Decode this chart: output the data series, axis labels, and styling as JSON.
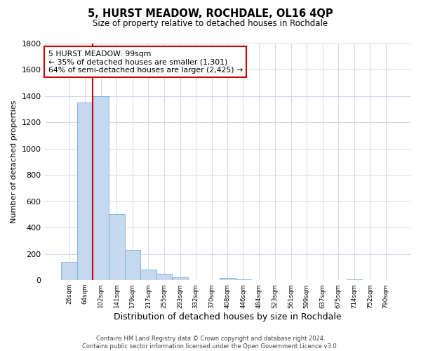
{
  "title": "5, HURST MEADOW, ROCHDALE, OL16 4QP",
  "subtitle": "Size of property relative to detached houses in Rochdale",
  "xlabel": "Distribution of detached houses by size in Rochdale",
  "ylabel": "Number of detached properties",
  "bar_labels": [
    "26sqm",
    "64sqm",
    "102sqm",
    "141sqm",
    "179sqm",
    "217sqm",
    "255sqm",
    "293sqm",
    "332sqm",
    "370sqm",
    "408sqm",
    "446sqm",
    "484sqm",
    "523sqm",
    "561sqm",
    "599sqm",
    "637sqm",
    "675sqm",
    "714sqm",
    "752sqm",
    "790sqm"
  ],
  "bar_values": [
    140,
    1350,
    1400,
    500,
    230,
    80,
    50,
    25,
    0,
    0,
    15,
    5,
    0,
    0,
    0,
    0,
    0,
    0,
    5,
    0,
    0
  ],
  "bar_color": "#c5d8f0",
  "bar_edge_color": "#7bafd4",
  "marker_color": "#cc0000",
  "marker_bar_index": 2,
  "ylim": [
    0,
    1800
  ],
  "yticks": [
    0,
    200,
    400,
    600,
    800,
    1000,
    1200,
    1400,
    1600,
    1800
  ],
  "annotation_title": "5 HURST MEADOW: 99sqm",
  "annotation_line1": "← 35% of detached houses are smaller (1,301)",
  "annotation_line2": "64% of semi-detached houses are larger (2,425) →",
  "annotation_box_color": "#ffffff",
  "annotation_box_edge": "#cc0000",
  "footer_line1": "Contains HM Land Registry data © Crown copyright and database right 2024.",
  "footer_line2": "Contains public sector information licensed under the Open Government Licence v3.0.",
  "background_color": "#ffffff",
  "grid_color": "#d0d8e8"
}
